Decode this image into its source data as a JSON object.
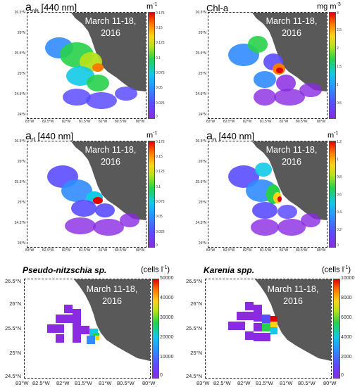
{
  "panels": [
    {
      "id": "aph",
      "title_main": "a",
      "title_sub": "ph",
      "title_rest": " [440 nm]",
      "date_line1": "March 11-18,",
      "date_line2": "2016",
      "unit": "m",
      "unit_sup": "-1",
      "colorbar_ticks": [
        "0.175",
        "0.15",
        "0.125",
        "0.1",
        "0.075",
        "0.05",
        "0.025",
        "0"
      ],
      "lat_ticks": [
        "26.5°N",
        "26°N",
        "25.5°N",
        "25°N",
        "24.5°N",
        "24°N"
      ],
      "lon_ticks": [
        "83°W",
        "82.5°W",
        "82°W",
        "81.5°W",
        "81°W",
        "80.5°W",
        "80°W"
      ]
    },
    {
      "id": "chla",
      "title_main": "Chl-a",
      "title_sub": "",
      "title_rest": "",
      "date_line1": "March 11-18,",
      "date_line2": "2016",
      "unit": "mg m",
      "unit_sup": "-3",
      "colorbar_ticks": [
        "3",
        "2.5",
        "2",
        "1.5",
        "1",
        "0.5"
      ],
      "lat_ticks": [
        "26.5°N",
        "26°N",
        "25.5°N",
        "25°N",
        "24.5°N",
        "24°N"
      ],
      "lon_ticks": [
        "83°W",
        "82.5°W",
        "82°W",
        "81.5°W",
        "81°W",
        "80.5°W",
        "80°W"
      ]
    },
    {
      "id": "ad",
      "title_main": "a",
      "title_sub": "d",
      "title_rest": " [440 nm]",
      "date_line1": "March 11-18,",
      "date_line2": "2016",
      "unit": "m",
      "unit_sup": "-1",
      "colorbar_ticks": [
        "0.175",
        "0.15",
        "0.125",
        "0.1",
        "0.075",
        "0.05",
        "0.025",
        "0"
      ],
      "lat_ticks": [
        "26.5°N",
        "26°N",
        "25.5°N",
        "25°N",
        "24.5°N",
        "24°N"
      ],
      "lon_ticks": [
        "83°W",
        "82.5°W",
        "82°W",
        "81.5°W",
        "81°W",
        "80.5°W",
        "80°W"
      ]
    },
    {
      "id": "ag",
      "title_main": "a",
      "title_sub": "g",
      "title_rest": " [440 nm]",
      "date_line1": "March 11-18,",
      "date_line2": "2016",
      "unit": "m",
      "unit_sup": "-1",
      "colorbar_ticks": [
        "1.2",
        "1",
        "0.8",
        "0.6",
        "0.4",
        "0.2",
        "0"
      ],
      "lat_ticks": [
        "26.5°N",
        "26°N",
        "25.5°N",
        "25°N",
        "24.5°N",
        "24°N"
      ],
      "lon_ticks": [
        "83°W",
        "82.5°W",
        "82°W",
        "81.5°W",
        "81°W",
        "80.5°W",
        "80°W"
      ]
    },
    {
      "id": "pn",
      "title_main": "Pseudo-nitzschia sp.",
      "title_sub": "",
      "title_rest": "",
      "date_line1": "March 11-18,",
      "date_line2": "2016",
      "unit": "(cells l",
      "unit_sup": "-1",
      "unit_close": ")",
      "colorbar_ticks": [
        "50000",
        "40000",
        "30000",
        "20000",
        "10000",
        "0"
      ],
      "lat_ticks": [
        "26.5°N",
        "26°N",
        "25.5°N",
        "25°N",
        "24.5°N"
      ],
      "lon_ticks": [
        "83°W",
        "82.5°W",
        "82°W",
        "81.5°W",
        "81°W",
        "80.5°W",
        "80°W"
      ]
    },
    {
      "id": "kb",
      "title_main": "Karenia spp.",
      "title_sub": "",
      "title_rest": "",
      "date_line1": "March 11-18,",
      "date_line2": "2016",
      "unit": "(cells l",
      "unit_sup": "-1",
      "unit_close": ")",
      "colorbar_ticks": [
        "10000",
        "8000",
        "6000",
        "4000",
        "2000",
        "0"
      ],
      "lat_ticks": [
        "26.5°N",
        "26°N",
        "25.5°N",
        "25°N",
        "24.5°N"
      ],
      "lon_ticks": [
        "83°W",
        "82.5°W",
        "82°W",
        "81.5°W",
        "81°W",
        "80.5°W",
        "80°W"
      ]
    }
  ],
  "colors": {
    "land": "#595959",
    "colormap": [
      "#8a2be2",
      "#5a4cff",
      "#2f8cff",
      "#12c9e6",
      "#27d14b",
      "#b6e21c",
      "#ffd21a",
      "#ff7a00",
      "#e00000"
    ]
  }
}
